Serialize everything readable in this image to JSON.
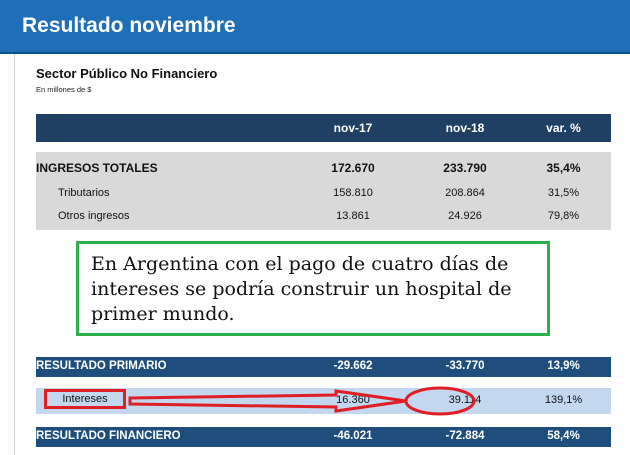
{
  "header": {
    "title": "Resultado noviembre"
  },
  "section": {
    "title": "Sector Público No Financiero",
    "subtitle": "En millones de $"
  },
  "table": {
    "columns": [
      "nov-17",
      "nov-18",
      "var. %"
    ],
    "ingresos": [
      {
        "label": "INGRESOS TOTALES",
        "nov17": "172.670",
        "nov18": "233.790",
        "var": "35,4%"
      },
      {
        "label": "Tributarios",
        "nov17": "158.810",
        "nov18": "208.864",
        "var": "31,5%"
      },
      {
        "label": "Otros ingresos",
        "nov17": "13.861",
        "nov18": "24.926",
        "var": "79,8%"
      }
    ],
    "primario": {
      "label": "RESULTADO PRIMARIO",
      "nov17": "-29.662",
      "nov18": "-33.770",
      "var": "13,9%"
    },
    "intereses": {
      "label": "Intereses",
      "nov17": "16.360",
      "nov18": "39.114",
      "var": "139,1%"
    },
    "financiero": {
      "label": "RESULTADO FINANCIERO",
      "nov17": "-46.021",
      "nov18": "-72.884",
      "var": "58,4%"
    }
  },
  "callout": {
    "text": "En Argentina con el pago de cuatro días de intereses se podría construir un hospital de primer mundo."
  },
  "colors": {
    "header": "#1f6fb8",
    "table_head": "#1f3f63",
    "band": "#1f4e7d",
    "band_light": "#c3d7ee",
    "highlight_red": "#e01e26",
    "callout_border": "#2fae4c"
  }
}
